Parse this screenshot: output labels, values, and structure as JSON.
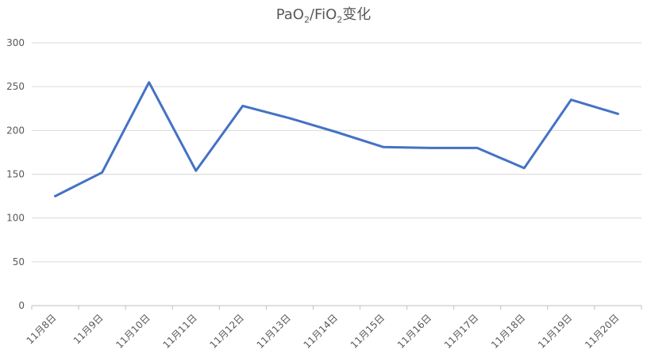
{
  "chart_data": {
    "type": "line",
    "title": {
      "main1": "PaO",
      "sub1": "2",
      "main2": "/FiO",
      "sub2": "2",
      "main3": "变化"
    },
    "categories": [
      "11月8日",
      "11月9日",
      "11月10日",
      "11月11日",
      "11月12日",
      "11月13日",
      "11月14日",
      "11月15日",
      "11月16日",
      "11月17日",
      "11月18日",
      "11月19日",
      "11月20日"
    ],
    "series": [
      {
        "values": [
          125,
          152,
          255,
          154,
          228,
          214,
          198,
          181,
          180,
          180,
          157,
          235,
          219
        ],
        "color": "#4472C4"
      }
    ],
    "yticks": [
      "0",
      "50",
      "100",
      "150",
      "200",
      "250",
      "300"
    ],
    "ylim": [
      0,
      300
    ],
    "grid": true,
    "legend": "none"
  }
}
